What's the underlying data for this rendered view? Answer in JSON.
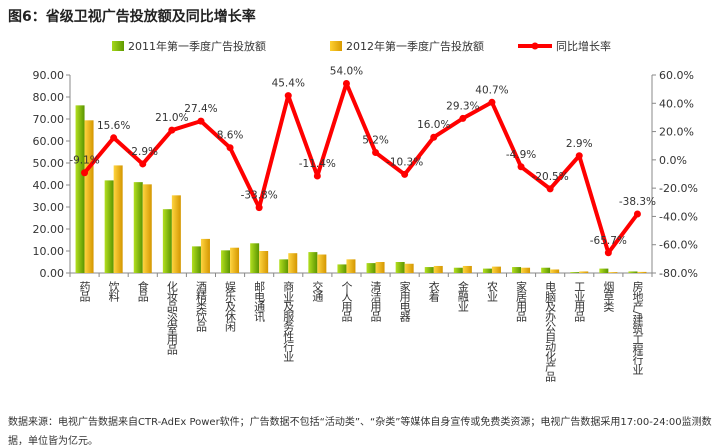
{
  "title": "图6：省级卫视广告投放额及同比增长率",
  "note": "数据来源：电视广告数据来自CTR-AdEx Power软件；广告数据不包括“活动类”、“杂类”等媒体自身宣传或免费类资源；电视广告数据采用17:00-24:00监测数据，单位皆为亿元。",
  "colors": {
    "series2011": "#7fba00",
    "series2012": "#f0b400",
    "growth": "#ff0000"
  },
  "chart_data": {
    "type": "bar+line",
    "categories": [
      "药品",
      "饮料",
      "食品",
      "化妆品/浴室用品",
      "酒精类饮品",
      "娱乐及休闲",
      "邮电通讯",
      "商业及服务性行业",
      "交通",
      "个人用品",
      "清洁用品",
      "家用电器",
      "衣着",
      "金融业",
      "农业",
      "家居用品",
      "电脑及办公自动化产品",
      "工业用品",
      "烟草类",
      "房地产/建筑工程行业"
    ],
    "series": [
      {
        "name": "2011年第一季度广告投放额",
        "type": "bar",
        "axis": "left",
        "values": [
          76.2,
          42.1,
          41.3,
          29.0,
          12.1,
          10.3,
          13.5,
          6.2,
          9.5,
          3.9,
          4.5,
          5.0,
          2.7,
          2.4,
          2.0,
          2.7,
          2.4,
          0.4,
          2.0,
          0.7
        ]
      },
      {
        "name": "2012年第一季度广告投放额",
        "type": "bar",
        "axis": "left",
        "values": [
          69.4,
          48.9,
          40.3,
          35.3,
          15.5,
          11.5,
          10.0,
          9.0,
          8.4,
          6.2,
          5.0,
          4.2,
          3.2,
          3.2,
          2.9,
          2.4,
          1.6,
          0.7,
          0.4,
          0.5
        ]
      },
      {
        "name": "同比增长率",
        "type": "line",
        "axis": "right",
        "values": [
          -9.1,
          15.6,
          -2.9,
          21.0,
          27.4,
          8.6,
          -33.8,
          45.4,
          -11.4,
          54.0,
          5.2,
          -10.3,
          16.0,
          29.3,
          40.7,
          -4.9,
          -20.5,
          2.9,
          -65.7,
          -38.3
        ],
        "labels": [
          "-9.1%",
          "15.6%",
          "-2.9%",
          "21.0%",
          "27.4%",
          "8.6%",
          "-33.8%",
          "45.4%",
          "-11.4%",
          "54.0%",
          "5.2%",
          "-10.3%",
          "16.0%",
          "29.3%",
          "40.7%",
          "-4.9%",
          "-20.5%",
          "2.9%",
          "-65.7%",
          "-38.3%"
        ]
      }
    ],
    "yleft": {
      "range": [
        0,
        90
      ],
      "ticks": [
        "0.00",
        "10.00",
        "20.00",
        "30.00",
        "40.00",
        "50.00",
        "60.00",
        "70.00",
        "80.00",
        "90.00"
      ]
    },
    "yright": {
      "range": [
        -80,
        60
      ],
      "ticks": [
        "-80.0%",
        "-60.0%",
        "-40.0%",
        "-20.0%",
        "0.0%",
        "20.0%",
        "40.0%",
        "60.0%"
      ]
    },
    "grid": false,
    "legend": "top"
  }
}
